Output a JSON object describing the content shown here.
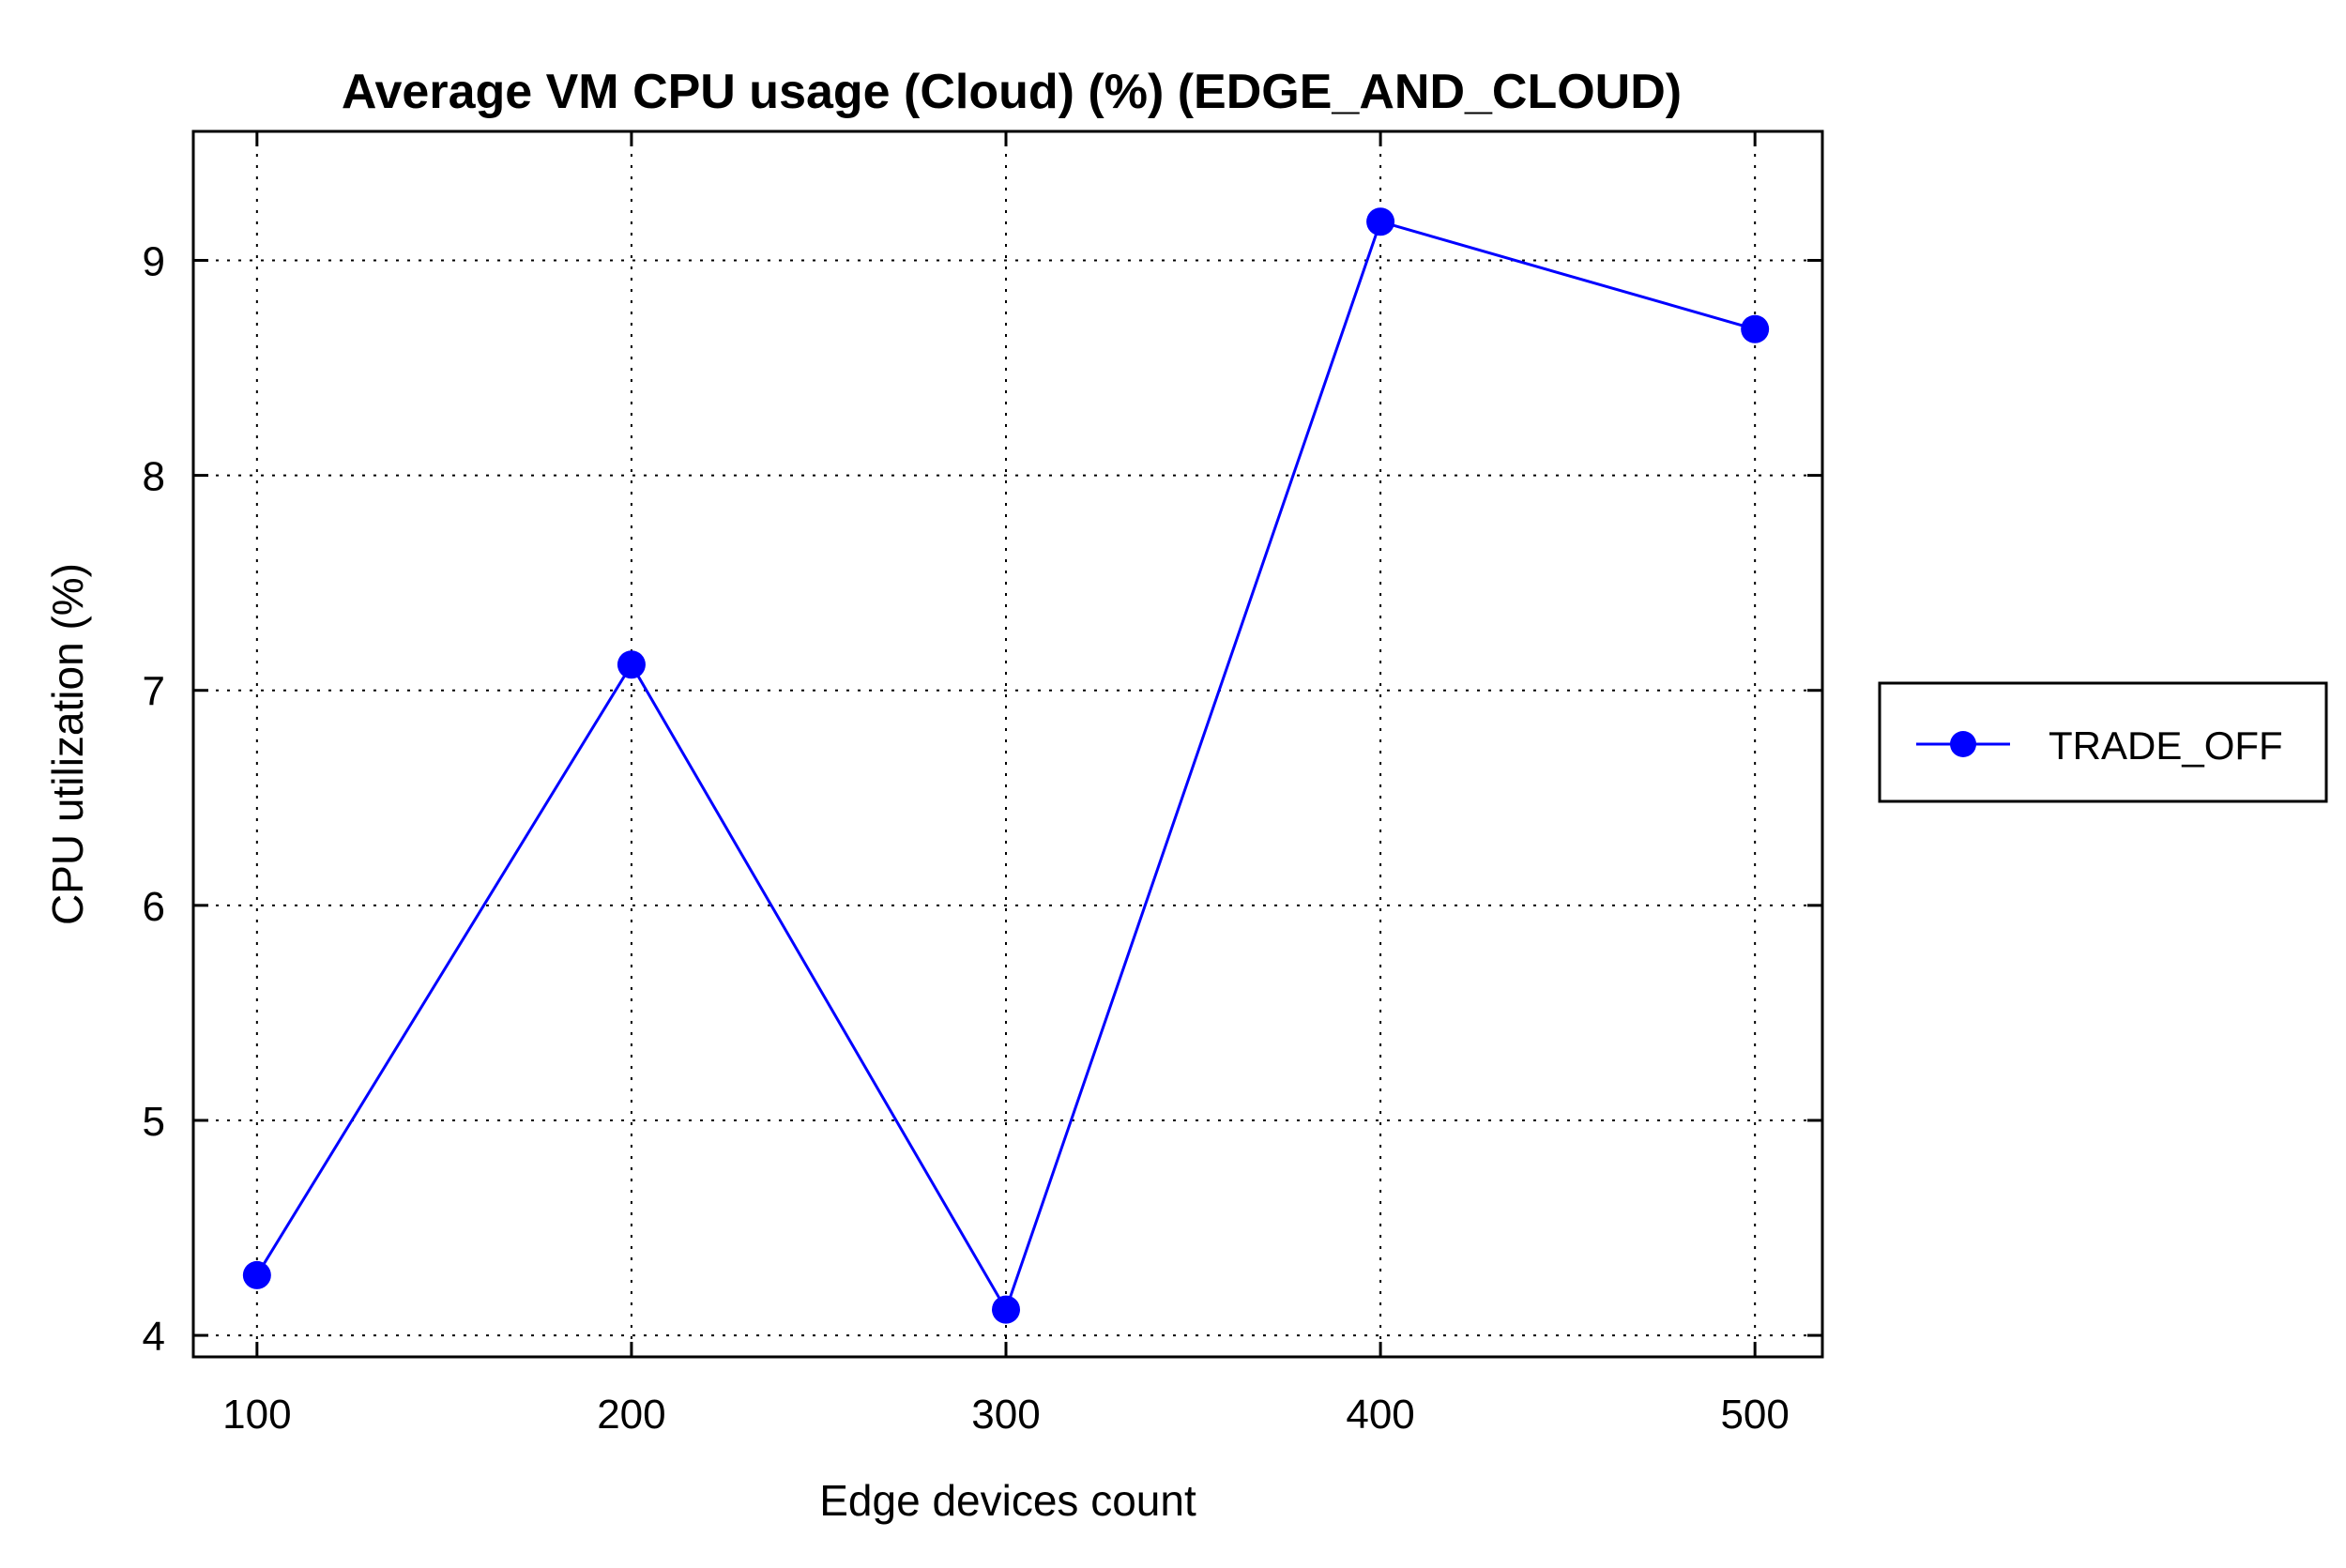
{
  "chart_data": {
    "type": "line",
    "title": "Average VM CPU usage (Cloud) (%) (EDGE_AND_CLOUD)",
    "xlabel": "Edge devices count",
    "ylabel": "CPU utilization (%)",
    "x": [
      100,
      200,
      300,
      400,
      500
    ],
    "x_ticks": [
      100,
      200,
      300,
      400,
      500
    ],
    "y_ticks": [
      4,
      5,
      6,
      7,
      8,
      9
    ],
    "xlim": [
      83,
      518
    ],
    "ylim": [
      3.9,
      9.6
    ],
    "grid": true,
    "legend_position": "right",
    "series": [
      {
        "name": "TRADE_OFF",
        "color": "#0000ff",
        "marker": "circle",
        "values": [
          4.28,
          7.12,
          4.12,
          9.18,
          8.68
        ]
      }
    ]
  }
}
